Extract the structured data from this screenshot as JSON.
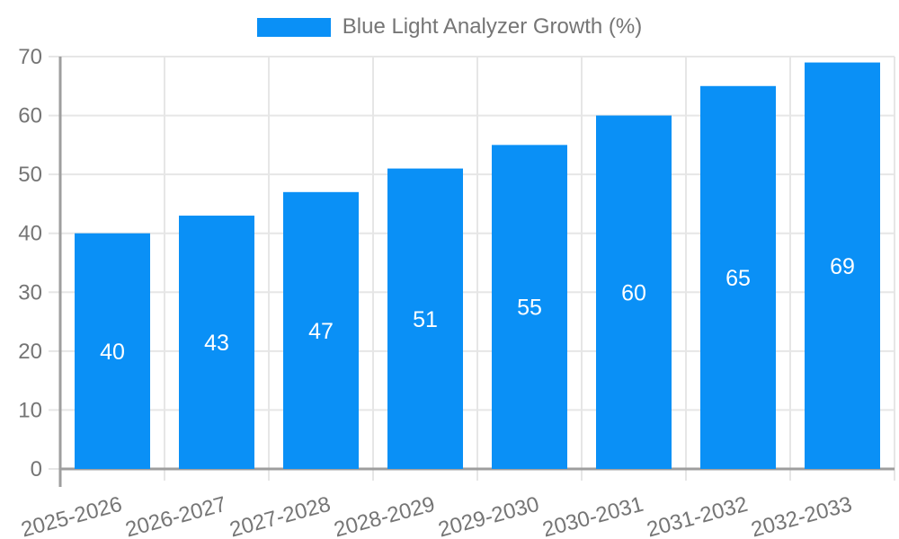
{
  "chart_data": {
    "type": "bar",
    "title": "Blue Light Analyzer Growth (%)",
    "categories": [
      "2025-2026",
      "2026-2027",
      "2027-2028",
      "2028-2029",
      "2029-2030",
      "2030-2031",
      "2031-2032",
      "2032-2033"
    ],
    "values": [
      40,
      43,
      47,
      51,
      55,
      60,
      65,
      69
    ],
    "series": [
      {
        "name": "Blue Light Analyzer Growth (%)",
        "values": [
          40,
          43,
          47,
          51,
          55,
          60,
          65,
          69
        ]
      }
    ],
    "xlabel": "",
    "ylabel": "",
    "ylim": [
      0,
      70
    ],
    "yticks": [
      0,
      10,
      20,
      30,
      40,
      50,
      60,
      70
    ],
    "grid": true,
    "legend_position": "top",
    "bar_labels_shown": true,
    "x_label_rotation_deg": -15,
    "colors": {
      "bar": "#0a90f6",
      "grid": "#e6e6e6",
      "axis": "#9e9e9e",
      "tick_text": "#757575",
      "bar_label_text": "#ffffff",
      "background": "#ffffff"
    }
  },
  "legend": {
    "label": "Blue Light Analyzer Growth (%)"
  }
}
